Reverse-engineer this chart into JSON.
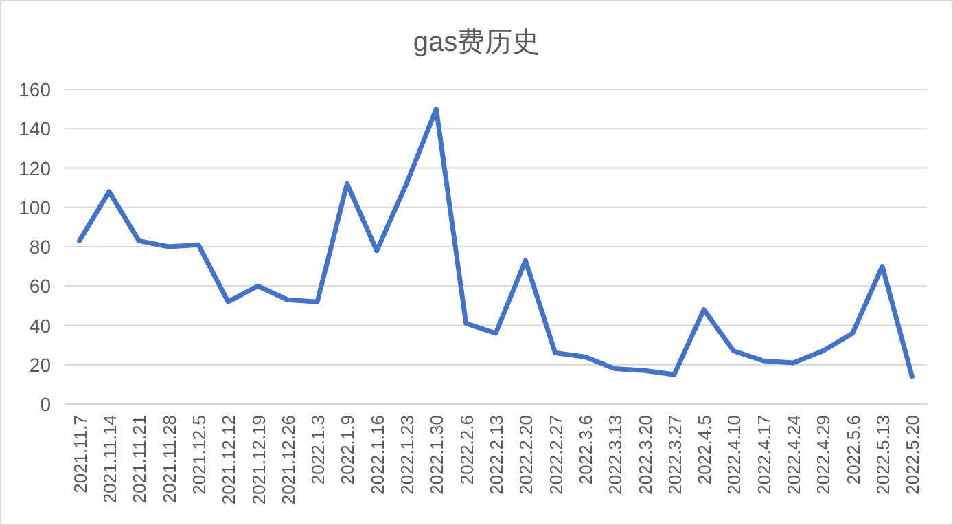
{
  "chart_data": {
    "type": "line",
    "title": "gas费历史",
    "categories": [
      "2021.11.7",
      "2021.11.14",
      "2021.11.21",
      "2021.11.28",
      "2021.12.5",
      "2021.12.12",
      "2021.12.19",
      "2021.12.26",
      "2022.1.3",
      "2022.1.9",
      "2022.1.16",
      "2022.1.23",
      "2022.1.30",
      "2022.2.6",
      "2022.2.13",
      "2022.2.20",
      "2022.2.27",
      "2022.3.6",
      "2022.3.13",
      "2022.3.20",
      "2022.3.27",
      "2022.4.5",
      "2022.4.10",
      "2022.4.17",
      "2022.4.24",
      "2022.4.29",
      "2022.5.6",
      "2022.5.13",
      "2022.5.20"
    ],
    "series": [
      {
        "color": "#4472c4",
        "values": [
          83,
          108,
          83,
          80,
          81,
          52,
          60,
          53,
          52,
          112,
          78,
          112,
          150,
          41,
          36,
          73,
          26,
          24,
          18,
          17,
          15,
          48,
          27,
          22,
          21,
          27,
          36,
          70,
          14
        ]
      }
    ],
    "ylim": [
      0,
      160
    ],
    "yticks": [
      0,
      20,
      40,
      60,
      80,
      100,
      120,
      140,
      160
    ],
    "grid": "y",
    "marker": "none",
    "line_style": "solid"
  }
}
